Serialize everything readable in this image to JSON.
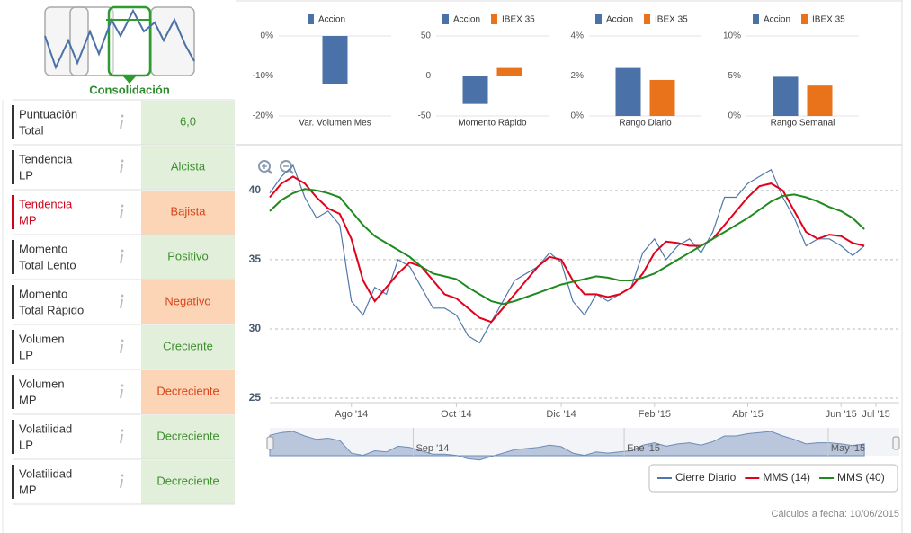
{
  "scorecard": {
    "icon_label": "Consolidación",
    "rows": [
      {
        "label": [
          "Puntuación",
          "Total"
        ],
        "value": "6,0",
        "fill": "#e2efdb",
        "color": "#3f8f2f",
        "label_color": "#333333"
      },
      {
        "label": [
          "Tendencia",
          "LP"
        ],
        "value": "Alcista",
        "fill": "#e2efdb",
        "color": "#3f8f2f",
        "label_color": "#333333"
      },
      {
        "label": [
          "Tendencia",
          "MP"
        ],
        "value": "Bajista",
        "fill": "#fbd5b5",
        "color": "#d9441a",
        "label_color": "#d0021b"
      },
      {
        "label": [
          "Momento",
          "Total Lento"
        ],
        "value": "Positivo",
        "fill": "#e2efdb",
        "color": "#3f8f2f",
        "label_color": "#333333"
      },
      {
        "label": [
          "Momento",
          "Total Rápido"
        ],
        "value": "Negativo",
        "fill": "#fbd5b5",
        "color": "#d9441a",
        "label_color": "#333333"
      },
      {
        "label": [
          "Volumen",
          "LP"
        ],
        "value": "Creciente",
        "fill": "#e2efdb",
        "color": "#3f8f2f",
        "label_color": "#333333"
      },
      {
        "label": [
          "Volumen",
          "MP"
        ],
        "value": "Decreciente",
        "fill": "#fbd5b5",
        "color": "#d9441a",
        "label_color": "#333333"
      },
      {
        "label": [
          "Volatilidad",
          "LP"
        ],
        "value": "Decreciente",
        "fill": "#e2efdb",
        "color": "#3f8f2f",
        "label_color": "#333333"
      },
      {
        "label": [
          "Volatilidad",
          "MP"
        ],
        "value": "Decreciente",
        "fill": "#e2efdb",
        "color": "#3f8f2f",
        "label_color": "#333333"
      }
    ]
  },
  "chart_data": [
    {
      "type": "bar",
      "categories": [
        "Var. Volumen Mes"
      ],
      "series": [
        {
          "name": "Accion",
          "color": "#4a72a8",
          "values": [
            -12
          ]
        }
      ],
      "ylim": [
        -20,
        0
      ],
      "yticks": [
        {
          "value": 0,
          "label": "0%"
        },
        {
          "value": -10,
          "label": "-10%"
        },
        {
          "value": -20,
          "label": "-20%"
        }
      ]
    },
    {
      "type": "bar",
      "categories": [
        "Momento Rápido"
      ],
      "series": [
        {
          "name": "Accion",
          "color": "#4a72a8",
          "values": [
            -35
          ]
        },
        {
          "name": "IBEX 35",
          "color": "#e8731a",
          "values": [
            10
          ]
        }
      ],
      "ylim": [
        -50,
        50
      ],
      "yticks": [
        50,
        0,
        -50
      ]
    },
    {
      "type": "bar",
      "categories": [
        "Rango Diario"
      ],
      "series": [
        {
          "name": "Accion",
          "color": "#4a72a8",
          "values": [
            2.4
          ]
        },
        {
          "name": "IBEX 35",
          "color": "#e8731a",
          "values": [
            1.8
          ]
        }
      ],
      "ylim": [
        0,
        4
      ],
      "yticks": [
        {
          "value": 4,
          "label": "4%"
        },
        {
          "value": 2,
          "label": "2%"
        },
        {
          "value": 0,
          "label": "0%"
        }
      ]
    },
    {
      "type": "bar",
      "categories": [
        "Rango Semanal"
      ],
      "series": [
        {
          "name": "Accion",
          "color": "#4a72a8",
          "values": [
            4.9
          ]
        },
        {
          "name": "IBEX 35",
          "color": "#e8731a",
          "values": [
            3.8
          ]
        }
      ],
      "ylim": [
        0,
        10
      ],
      "yticks": [
        {
          "value": 10,
          "label": "10%"
        },
        {
          "value": 5,
          "label": "5%"
        },
        {
          "value": 0,
          "label": "0%"
        }
      ]
    },
    {
      "type": "line",
      "categories": [
        null,
        null,
        null,
        null,
        null,
        null,
        null,
        "Ago '14",
        null,
        null,
        null,
        null,
        null,
        null,
        null,
        null,
        "Oct '14",
        null,
        null,
        null,
        null,
        null,
        null,
        null,
        null,
        "Dic '14",
        null,
        null,
        null,
        null,
        null,
        null,
        null,
        "Feb '15",
        null,
        null,
        null,
        null,
        null,
        null,
        null,
        "Abr '15",
        null,
        null,
        null,
        null,
        null,
        null,
        null,
        "Jun '15",
        null,
        null,
        "Jul '15",
        null,
        null
      ],
      "series": [
        {
          "name": "Cierre Diario",
          "color": "#4f78aa",
          "values": [
            39.8,
            41,
            41.8,
            39.5,
            38,
            38.5,
            37.5,
            32,
            31,
            33,
            32.5,
            35,
            34.5,
            33,
            31.5,
            31.5,
            31,
            29.5,
            29,
            30.5,
            32,
            33.5,
            34,
            34.5,
            35.5,
            34.8,
            32,
            31,
            32.5,
            32,
            32.5,
            33,
            35.5,
            36.5,
            35,
            36,
            36.5,
            35.5,
            37,
            39.5,
            39.5,
            40.5,
            41,
            41.5,
            39.5,
            38,
            36,
            36.5,
            36.5,
            36,
            35.3,
            36,
            null,
            null,
            null
          ]
        },
        {
          "name": "MMS (14)",
          "color": "#e3001b",
          "values": [
            39.5,
            40.5,
            41,
            40.5,
            39.5,
            38.7,
            38.3,
            36.5,
            33.5,
            32,
            33,
            34,
            34.8,
            34.5,
            33.5,
            32.5,
            32.2,
            31.5,
            30.8,
            30.5,
            31.5,
            32.5,
            33.5,
            34.5,
            35.2,
            35,
            33.5,
            32.5,
            32.5,
            32.3,
            32.5,
            33,
            34,
            35.5,
            36.3,
            36.2,
            36,
            36,
            36.5,
            37.5,
            38.5,
            39.5,
            40.3,
            40.5,
            40,
            38.5,
            37,
            36.5,
            36.8,
            36.7,
            36.2,
            36,
            null,
            null,
            null
          ]
        },
        {
          "name": "MMS (40)",
          "color": "#1f8a1f",
          "values": [
            38.5,
            39.3,
            39.8,
            40.1,
            40,
            39.8,
            39.5,
            38.5,
            37.5,
            36.7,
            36.2,
            35.7,
            35.2,
            34.5,
            34,
            33.8,
            33.6,
            33,
            32.5,
            32,
            31.8,
            32,
            32.3,
            32.6,
            32.9,
            33.2,
            33.4,
            33.6,
            33.8,
            33.7,
            33.5,
            33.5,
            33.7,
            34,
            34.5,
            35,
            35.5,
            36,
            36.5,
            37,
            37.5,
            38,
            38.6,
            39.2,
            39.6,
            39.7,
            39.5,
            39.2,
            38.8,
            38.5,
            38,
            37.2,
            null,
            null,
            null
          ]
        }
      ],
      "ylim": [
        25,
        42
      ],
      "yticks": [
        25,
        30,
        35,
        40
      ],
      "grid": true,
      "navigator_ticks": [
        {
          "value": 12.3,
          "label": "Sep '14"
        },
        {
          "value": 30.4,
          "label": "Ene '15"
        },
        {
          "value": 47.9,
          "label": "May '15"
        }
      ]
    }
  ],
  "footer": "Cálculos a fecha: 10/06/2015"
}
